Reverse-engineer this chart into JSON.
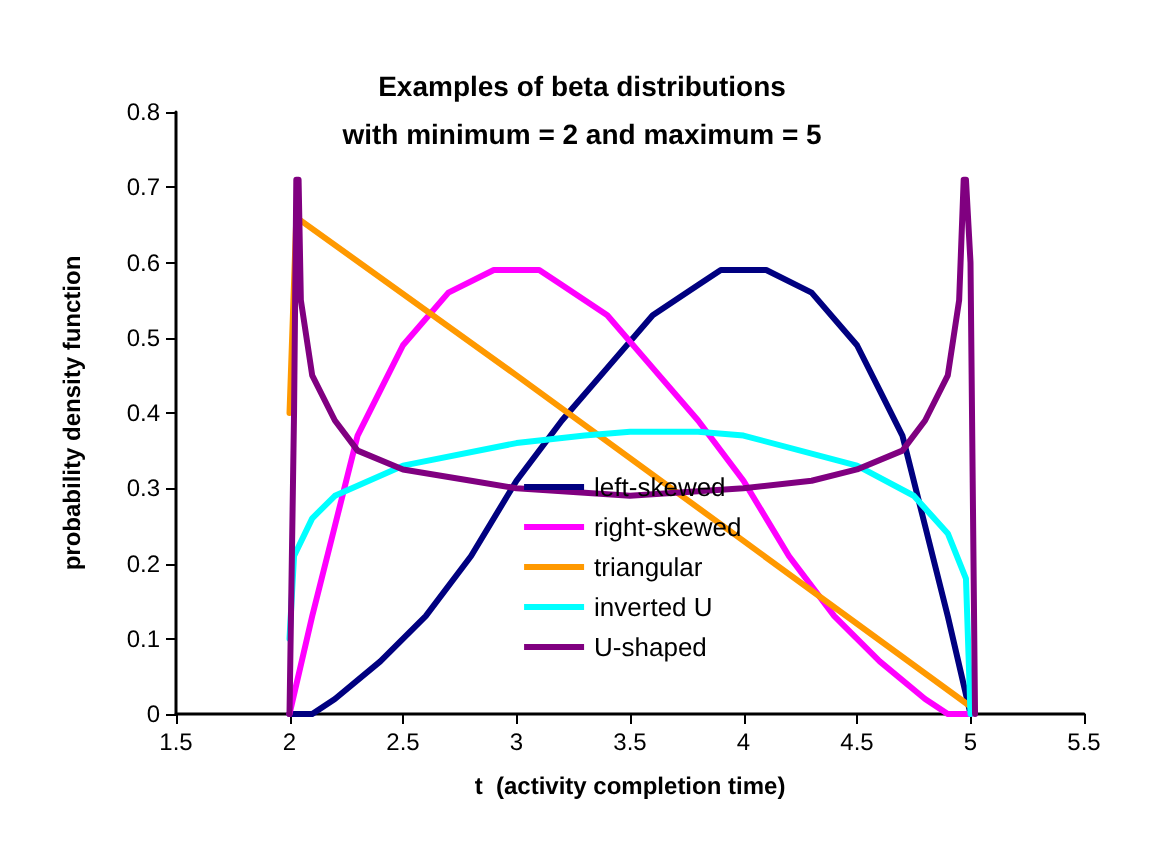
{
  "chart_data": {
    "type": "line",
    "title": "Examples of beta distributions\nwith minimum = 2 and maximum = 5",
    "xlabel": "t  (activity completion time)",
    "ylabel": "probability density function",
    "xlim": [
      1.5,
      5.5
    ],
    "xticks": [
      1.5,
      2,
      2.5,
      3,
      3.5,
      4,
      4.5,
      5,
      5.5
    ],
    "ylim": [
      0,
      0.8
    ],
    "yticks": [
      0,
      0.1,
      0.2,
      0.3,
      0.4,
      0.5,
      0.6,
      0.7,
      0.8
    ],
    "grid": false,
    "legend": "bottom",
    "marker": "none",
    "line_style": "solid",
    "series": [
      {
        "name": "left-skewed",
        "color": "#000080",
        "x": [
          2,
          2.1,
          2.2,
          2.4,
          2.6,
          2.8,
          3,
          3.2,
          3.4,
          3.6,
          3.8,
          3.9,
          4.1,
          4.3,
          4.5,
          4.6,
          4.7,
          4.8,
          4.9,
          5
        ],
        "values": [
          0,
          0,
          0.02,
          0.07,
          0.13,
          0.21,
          0.31,
          0.39,
          0.46,
          0.53,
          0.57,
          0.59,
          0.59,
          0.56,
          0.49,
          0.43,
          0.37,
          0.25,
          0.13,
          0
        ]
      },
      {
        "name": "right-skewed",
        "color": "#ff00ff",
        "x": [
          2,
          2.1,
          2.2,
          2.3,
          2.4,
          2.5,
          2.7,
          2.9,
          3.1,
          3.2,
          3.4,
          3.6,
          3.8,
          4,
          4.2,
          4.4,
          4.6,
          4.8,
          4.9,
          5
        ],
        "values": [
          0,
          0.13,
          0.25,
          0.37,
          0.43,
          0.49,
          0.56,
          0.59,
          0.59,
          0.57,
          0.53,
          0.46,
          0.39,
          0.31,
          0.21,
          0.13,
          0.07,
          0.02,
          0,
          0
        ]
      },
      {
        "name": "triangular",
        "color": "#ff9900",
        "x": [
          2,
          2.03,
          3,
          4,
          5
        ],
        "values": [
          0.4,
          0.66,
          0.45,
          0.23,
          0.01
        ]
      },
      {
        "name": "inverted U",
        "color": "#00ffff",
        "x": [
          2,
          2.02,
          2.1,
          2.2,
          2.5,
          3,
          3.3,
          3.5,
          3.8,
          4,
          4.5,
          4.75,
          4.9,
          4.98,
          5
        ],
        "values": [
          0.1,
          0.21,
          0.26,
          0.29,
          0.33,
          0.36,
          0.37,
          0.375,
          0.375,
          0.37,
          0.33,
          0.29,
          0.24,
          0.18,
          0
        ]
      },
      {
        "name": "U-shaped",
        "color": "#800080",
        "x": [
          2,
          2.02,
          2.03,
          2.04,
          2.05,
          2.1,
          2.2,
          2.3,
          2.5,
          2.8,
          3,
          3.5,
          4,
          4.3,
          4.5,
          4.7,
          4.8,
          4.9,
          4.95,
          4.97,
          4.98,
          5,
          5.02
        ],
        "values": [
          0,
          0.4,
          0.71,
          0.71,
          0.55,
          0.45,
          0.39,
          0.35,
          0.325,
          0.31,
          0.3,
          0.29,
          0.3,
          0.31,
          0.325,
          0.35,
          0.39,
          0.45,
          0.55,
          0.71,
          0.71,
          0.6,
          0
        ]
      }
    ]
  }
}
